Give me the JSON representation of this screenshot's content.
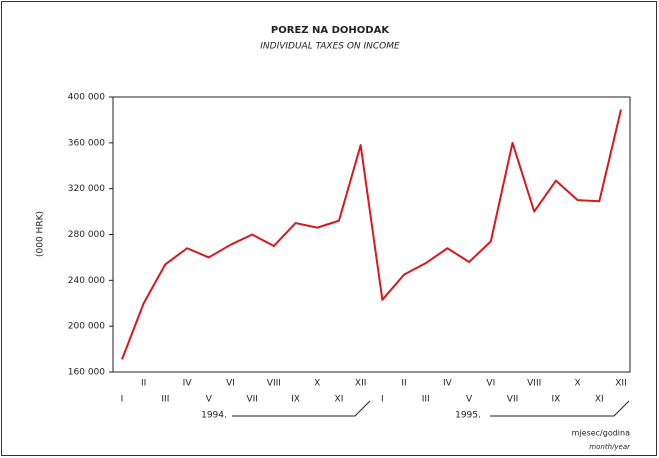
{
  "chart_data": {
    "type": "line",
    "title": "POREZ NA DOHODAK",
    "subtitle": "INDIVIDUAL TAXES ON INCOME",
    "y_label": "(000 HRK)",
    "x_label": "mjesec/godina",
    "x_label_en": "month/year",
    "years": [
      "1994.",
      "1995."
    ],
    "categories": [
      "I",
      "II",
      "III",
      "IV",
      "V",
      "VI",
      "VII",
      "VIII",
      "IX",
      "X",
      "XI",
      "XII",
      "I",
      "II",
      "III",
      "IV",
      "V",
      "VI",
      "VII",
      "VIII",
      "IX",
      "X",
      "XI",
      "XII"
    ],
    "series": [
      {
        "color": "#d7191f",
        "values": [
          171000,
          220000,
          254000,
          268000,
          260000,
          271000,
          280000,
          270000,
          290000,
          286000,
          292000,
          358000,
          223000,
          245000,
          255000,
          268000,
          256000,
          274000,
          360000,
          300000,
          327000,
          310000,
          309000,
          389000
        ]
      }
    ],
    "ylim": [
      160000,
      400000
    ],
    "yticks": [
      {
        "value": 160000,
        "label": "160 000"
      },
      {
        "value": 200000,
        "label": "200 000"
      },
      {
        "value": 240000,
        "label": "240 000"
      },
      {
        "value": 280000,
        "label": "280 000"
      },
      {
        "value": 320000,
        "label": "320 000"
      },
      {
        "value": 360000,
        "label": "360 000"
      },
      {
        "value": 400000,
        "label": "400 000"
      }
    ],
    "grid": false
  }
}
